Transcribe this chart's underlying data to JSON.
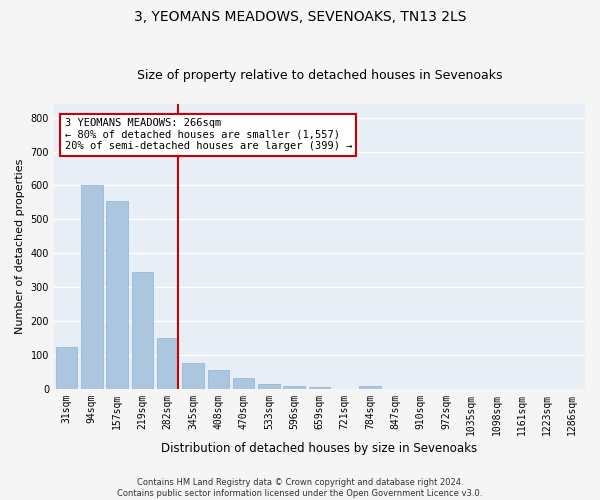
{
  "title": "3, YEOMANS MEADOWS, SEVENOAKS, TN13 2LS",
  "subtitle": "Size of property relative to detached houses in Sevenoaks",
  "xlabel": "Distribution of detached houses by size in Sevenoaks",
  "ylabel": "Number of detached properties",
  "footer_line1": "Contains HM Land Registry data © Crown copyright and database right 2024.",
  "footer_line2": "Contains public sector information licensed under the Open Government Licence v3.0.",
  "categories": [
    "31sqm",
    "94sqm",
    "157sqm",
    "219sqm",
    "282sqm",
    "345sqm",
    "408sqm",
    "470sqm",
    "533sqm",
    "596sqm",
    "659sqm",
    "721sqm",
    "784sqm",
    "847sqm",
    "910sqm",
    "972sqm",
    "1035sqm",
    "1098sqm",
    "1161sqm",
    "1223sqm",
    "1286sqm"
  ],
  "values": [
    125,
    600,
    555,
    345,
    150,
    78,
    57,
    33,
    15,
    10,
    6,
    0,
    8,
    0,
    0,
    0,
    0,
    0,
    0,
    0,
    0
  ],
  "bar_color": "#adc6e0",
  "bar_edge_color": "#8ab4d4",
  "vline_x_index": 4,
  "vline_color": "#cc0000",
  "annotation_text": "3 YEOMANS MEADOWS: 266sqm\n← 80% of detached houses are smaller (1,557)\n20% of semi-detached houses are larger (399) →",
  "annotation_box_color": "#ffffff",
  "annotation_box_edge_color": "#cc0000",
  "ylim": [
    0,
    840
  ],
  "yticks": [
    0,
    100,
    200,
    300,
    400,
    500,
    600,
    700,
    800
  ],
  "background_color": "#e8eef5",
  "grid_color": "#ffffff",
  "title_fontsize": 10,
  "subtitle_fontsize": 9,
  "xlabel_fontsize": 8.5,
  "ylabel_fontsize": 8,
  "tick_fontsize": 7,
  "annotation_fontsize": 7.5,
  "footer_fontsize": 6
}
